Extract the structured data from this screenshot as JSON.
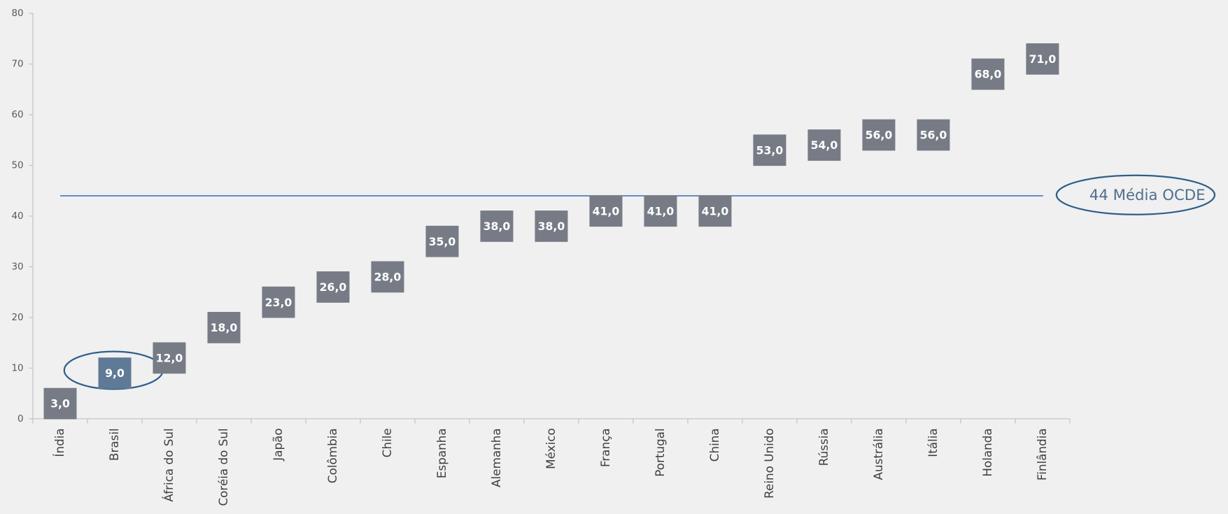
{
  "chart_data": {
    "type": "scatter",
    "categories": [
      "Índia",
      "Brasil",
      "África do Sul",
      "Coréia do Sul",
      "Japão",
      "Colômbia",
      "Chile",
      "Espanha",
      "Alemanha",
      "México",
      "França",
      "Portugal",
      "China",
      "Reino Unido",
      "Rússia",
      "Austrália",
      "Itália",
      "Holanda",
      "Finlândia"
    ],
    "values": [
      3,
      9,
      12,
      18,
      23,
      26,
      28,
      35,
      38,
      38,
      41,
      41,
      41,
      53,
      54,
      56,
      56,
      68,
      71
    ],
    "value_labels": [
      "3,0",
      "9,0",
      "12,0",
      "18,0",
      "23,0",
      "26,0",
      "28,0",
      "35,0",
      "38,0",
      "38,0",
      "41,0",
      "41,0",
      "41,0",
      "53,0",
      "54,0",
      "56,0",
      "56,0",
      "68,0",
      "71,0"
    ],
    "colors": [
      "#767b86",
      "#5f7a96",
      "#767b86",
      "#767b86",
      "#767b86",
      "#767b86",
      "#767b86",
      "#767b86",
      "#767b86",
      "#767b86",
      "#767b86",
      "#767b86",
      "#767b86",
      "#767b86",
      "#767b86",
      "#767b86",
      "#767b86",
      "#767b86",
      "#767b86"
    ],
    "ylim": [
      0,
      80
    ],
    "yticks": [
      0,
      10,
      20,
      30,
      40,
      50,
      60,
      70,
      80
    ],
    "grid": false,
    "reference": {
      "value": 44,
      "label": "44 Média OCDE",
      "color": "#4f81bd"
    }
  }
}
